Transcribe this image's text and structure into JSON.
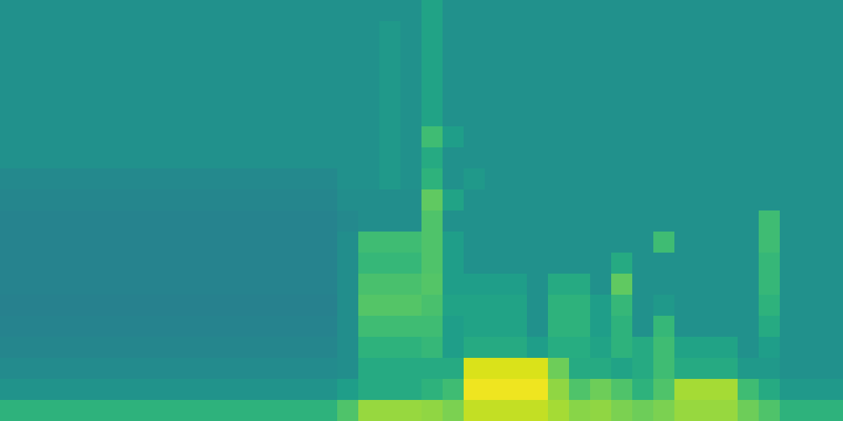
{
  "chart_data": {
    "type": "heatmap",
    "tick_labels": false,
    "grid": false,
    "color": "Viridis",
    "zlim": [
      0,
      90
    ],
    "cells": [
      [
        45,
        45,
        45,
        45,
        45,
        45,
        45,
        45,
        45,
        45,
        45,
        45,
        45,
        45,
        45,
        45,
        45,
        45,
        45,
        45,
        52,
        45,
        45,
        45,
        45,
        45,
        45,
        45,
        45,
        45,
        45,
        45,
        45,
        45,
        45,
        45,
        45,
        45,
        45,
        45
      ],
      [
        45,
        45,
        45,
        45,
        45,
        45,
        45,
        45,
        45,
        45,
        45,
        45,
        45,
        45,
        45,
        45,
        45,
        45,
        48,
        45,
        52,
        45,
        45,
        45,
        45,
        45,
        45,
        45,
        45,
        45,
        45,
        45,
        45,
        45,
        45,
        45,
        45,
        45,
        45,
        45
      ],
      [
        45,
        45,
        45,
        45,
        45,
        45,
        45,
        45,
        45,
        45,
        45,
        45,
        45,
        45,
        45,
        45,
        45,
        45,
        48,
        45,
        52,
        45,
        45,
        45,
        45,
        45,
        45,
        45,
        45,
        45,
        45,
        45,
        45,
        45,
        45,
        45,
        45,
        45,
        45,
        45
      ],
      [
        45,
        45,
        45,
        45,
        45,
        45,
        45,
        45,
        45,
        45,
        45,
        45,
        45,
        45,
        45,
        45,
        45,
        45,
        48,
        45,
        52,
        45,
        45,
        45,
        45,
        45,
        45,
        45,
        45,
        45,
        45,
        45,
        45,
        45,
        45,
        45,
        45,
        45,
        45,
        45
      ],
      [
        45,
        45,
        45,
        45,
        45,
        45,
        45,
        45,
        45,
        45,
        45,
        45,
        45,
        45,
        45,
        45,
        45,
        45,
        48,
        45,
        52,
        45,
        45,
        45,
        45,
        45,
        45,
        45,
        45,
        45,
        45,
        45,
        45,
        45,
        45,
        45,
        45,
        45,
        45,
        45
      ],
      [
        45,
        45,
        45,
        45,
        45,
        45,
        45,
        45,
        45,
        45,
        45,
        45,
        45,
        45,
        45,
        45,
        45,
        45,
        48,
        45,
        52,
        45,
        45,
        45,
        45,
        45,
        45,
        45,
        45,
        45,
        45,
        45,
        45,
        45,
        45,
        45,
        45,
        45,
        45,
        45
      ],
      [
        45,
        45,
        45,
        45,
        45,
        45,
        45,
        45,
        45,
        45,
        45,
        45,
        45,
        45,
        45,
        45,
        45,
        45,
        48,
        45,
        62,
        50,
        45,
        45,
        45,
        45,
        45,
        45,
        45,
        45,
        45,
        45,
        45,
        45,
        45,
        45,
        45,
        45,
        45,
        45
      ],
      [
        45,
        45,
        45,
        45,
        45,
        45,
        45,
        45,
        45,
        45,
        45,
        45,
        45,
        45,
        45,
        45,
        45,
        45,
        48,
        45,
        55,
        45,
        45,
        45,
        45,
        45,
        45,
        45,
        45,
        45,
        45,
        45,
        45,
        45,
        45,
        45,
        45,
        45,
        45,
        45
      ],
      [
        42,
        42,
        42,
        42,
        42,
        42,
        42,
        42,
        42,
        42,
        42,
        42,
        42,
        42,
        42,
        42,
        45,
        45,
        48,
        45,
        58,
        45,
        48,
        45,
        45,
        45,
        45,
        45,
        45,
        45,
        45,
        45,
        45,
        45,
        45,
        45,
        45,
        45,
        45,
        45
      ],
      [
        41,
        41,
        41,
        41,
        41,
        41,
        41,
        41,
        41,
        41,
        41,
        41,
        41,
        41,
        41,
        41,
        44,
        44,
        44,
        44,
        68,
        52,
        45,
        45,
        45,
        45,
        45,
        45,
        45,
        45,
        45,
        45,
        45,
        45,
        45,
        45,
        45,
        45,
        45,
        45
      ],
      [
        40,
        40,
        40,
        40,
        40,
        40,
        40,
        40,
        40,
        40,
        40,
        40,
        40,
        40,
        40,
        40,
        42,
        44,
        44,
        44,
        65,
        45,
        45,
        45,
        45,
        45,
        45,
        45,
        45,
        45,
        45,
        45,
        45,
        45,
        45,
        45,
        62,
        45,
        45,
        45
      ],
      [
        40,
        40,
        40,
        40,
        40,
        40,
        40,
        40,
        40,
        40,
        40,
        40,
        40,
        40,
        40,
        40,
        44,
        62,
        62,
        62,
        65,
        50,
        45,
        45,
        45,
        45,
        45,
        45,
        45,
        45,
        45,
        62,
        45,
        45,
        45,
        45,
        62,
        45,
        45,
        45
      ],
      [
        40,
        40,
        40,
        40,
        40,
        40,
        40,
        40,
        40,
        40,
        40,
        40,
        40,
        40,
        40,
        40,
        44,
        60,
        60,
        60,
        65,
        50,
        45,
        45,
        45,
        45,
        45,
        45,
        45,
        55,
        45,
        45,
        45,
        45,
        45,
        45,
        60,
        45,
        45,
        45
      ],
      [
        40,
        40,
        40,
        40,
        40,
        40,
        40,
        40,
        40,
        40,
        40,
        40,
        40,
        40,
        40,
        40,
        44,
        64,
        64,
        64,
        66,
        50,
        50,
        50,
        50,
        45,
        55,
        55,
        45,
        68,
        45,
        45,
        45,
        45,
        45,
        45,
        60,
        45,
        45,
        45
      ],
      [
        39,
        39,
        39,
        39,
        39,
        39,
        39,
        39,
        39,
        39,
        39,
        39,
        39,
        39,
        39,
        39,
        44,
        66,
        66,
        66,
        64,
        52,
        52,
        52,
        52,
        45,
        58,
        58,
        50,
        60,
        45,
        48,
        45,
        45,
        45,
        45,
        58,
        45,
        45,
        45
      ],
      [
        40,
        40,
        40,
        40,
        40,
        40,
        40,
        40,
        40,
        40,
        40,
        40,
        40,
        40,
        40,
        40,
        44,
        62,
        62,
        62,
        62,
        50,
        52,
        52,
        52,
        45,
        58,
        58,
        50,
        58,
        45,
        60,
        45,
        45,
        45,
        45,
        55,
        45,
        45,
        45
      ],
      [
        41,
        41,
        41,
        41,
        41,
        41,
        41,
        41,
        41,
        41,
        41,
        41,
        41,
        41,
        41,
        41,
        44,
        58,
        58,
        58,
        60,
        50,
        55,
        55,
        55,
        50,
        56,
        56,
        52,
        58,
        55,
        62,
        52,
        52,
        52,
        45,
        50,
        45,
        45,
        45
      ],
      [
        43,
        43,
        43,
        43,
        43,
        43,
        43,
        43,
        43,
        43,
        43,
        43,
        43,
        43,
        43,
        43,
        44,
        55,
        55,
        55,
        55,
        55,
        85,
        85,
        85,
        85,
        70,
        55,
        55,
        52,
        55,
        62,
        55,
        55,
        55,
        48,
        48,
        45,
        45,
        45
      ],
      [
        46,
        46,
        46,
        46,
        46,
        46,
        46,
        46,
        46,
        46,
        46,
        46,
        46,
        46,
        46,
        46,
        50,
        55,
        55,
        55,
        58,
        62,
        88,
        88,
        88,
        88,
        75,
        65,
        70,
        65,
        58,
        65,
        78,
        78,
        78,
        62,
        55,
        48,
        48,
        48
      ],
      [
        58,
        58,
        58,
        58,
        58,
        58,
        58,
        58,
        58,
        58,
        58,
        58,
        58,
        58,
        58,
        58,
        65,
        76,
        76,
        76,
        75,
        72,
        82,
        82,
        82,
        82,
        78,
        74,
        75,
        72,
        70,
        72,
        76,
        76,
        76,
        70,
        65,
        58,
        58,
        58
      ]
    ]
  }
}
